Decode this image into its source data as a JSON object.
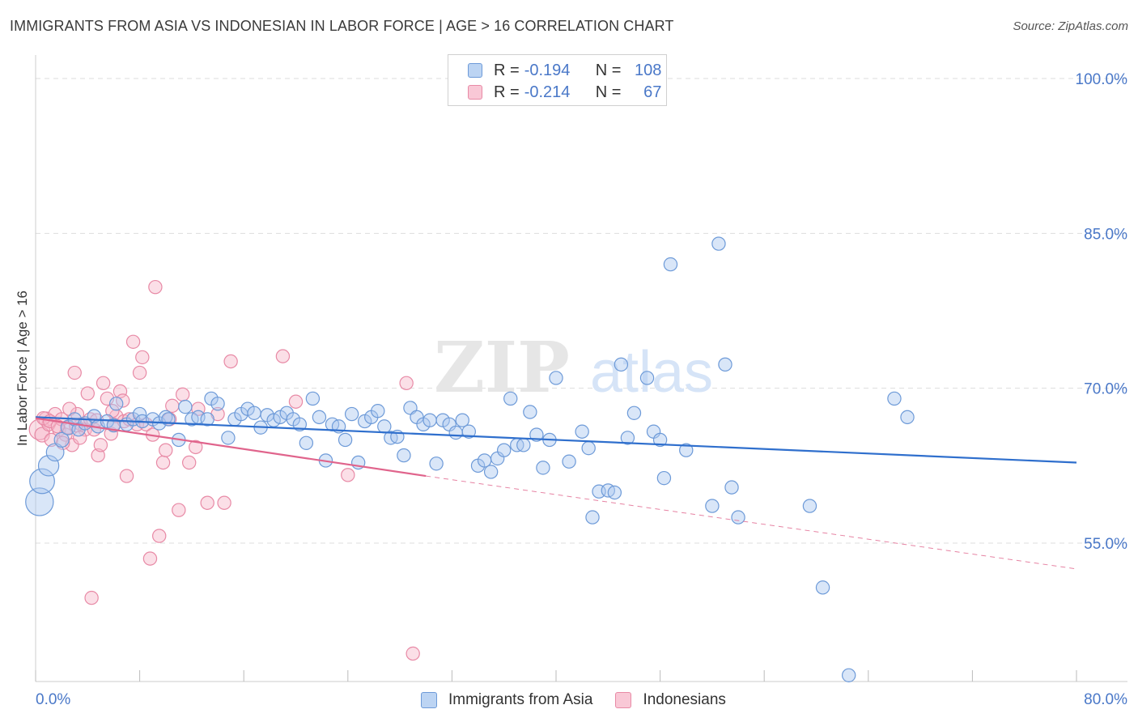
{
  "header": {
    "title": "IMMIGRANTS FROM ASIA VS INDONESIAN IN LABOR FORCE | AGE > 16 CORRELATION CHART",
    "source": "Source: ZipAtlas.com"
  },
  "watermark": {
    "zip": "ZIP",
    "atlas": "atlas"
  },
  "colors": {
    "blue_fill": "#aac8f0",
    "blue_stroke": "#6d9ad8",
    "blue_line": "#2f6fcd",
    "pink_fill": "#f6b8ca",
    "pink_stroke": "#e88aa6",
    "pink_line": "#e0648c",
    "axis_text": "#4a78c8",
    "grid": "#dddddd"
  },
  "legend": {
    "rows": [
      {
        "r_label": "R =",
        "r_value": "-0.194",
        "n_label": "N =",
        "n_value": "108"
      },
      {
        "r_label": "R =",
        "r_value": "-0.214",
        "n_label": "N =",
        "n_value": "67"
      }
    ],
    "series_names": [
      "Immigrants from Asia",
      "Indonesians"
    ]
  },
  "chart_data": {
    "type": "scatter",
    "title": "IMMIGRANTS FROM ASIA VS INDONESIAN IN LABOR FORCE | AGE > 16 CORRELATION CHART",
    "xlabel": "",
    "ylabel": "In Labor Force | Age > 16",
    "xlim": [
      0,
      80
    ],
    "ylim": [
      40,
      102
    ],
    "x_tick_labels": [
      "0.0%",
      "80.0%"
    ],
    "y_ticks": [
      55,
      70,
      85,
      100
    ],
    "y_tick_labels": [
      "55.0%",
      "70.0%",
      "85.0%",
      "100.0%"
    ],
    "grid": true,
    "legend_position": "bottom",
    "series": [
      {
        "name": "Immigrants from Asia",
        "trend": {
          "x": [
            0,
            80
          ],
          "y": [
            67.2,
            62.8
          ],
          "dashed_from": null
        },
        "points": [
          [
            0.3,
            59.0,
            1.9
          ],
          [
            0.5,
            61.0,
            1.7
          ],
          [
            1.0,
            62.5,
            1.4
          ],
          [
            1.5,
            63.8,
            1.2
          ],
          [
            2.0,
            65.0,
            1.0
          ],
          [
            2.5,
            66.2,
            1.0
          ],
          [
            3.0,
            67.0,
            0.9
          ],
          [
            3.3,
            66.0,
            0.9
          ],
          [
            3.8,
            66.6,
            0.9
          ],
          [
            4.5,
            67.3,
            0.9
          ],
          [
            4.8,
            66.3,
            0.9
          ],
          [
            5.5,
            66.8,
            0.9
          ],
          [
            6.0,
            66.4,
            0.9
          ],
          [
            6.2,
            68.5,
            0.9
          ],
          [
            7.0,
            66.5,
            0.9
          ],
          [
            7.5,
            67.0,
            0.9
          ],
          [
            8.0,
            67.5,
            0.9
          ],
          [
            8.2,
            66.8,
            0.9
          ],
          [
            9.0,
            67.0,
            0.9
          ],
          [
            9.5,
            66.6,
            0.9
          ],
          [
            10.0,
            67.2,
            0.9
          ],
          [
            10.2,
            67.0,
            0.9
          ],
          [
            11.0,
            65.0,
            0.9
          ],
          [
            11.5,
            68.2,
            0.9
          ],
          [
            12.0,
            67.0,
            0.9
          ],
          [
            12.5,
            67.2,
            0.9
          ],
          [
            13.2,
            67.0,
            0.9
          ],
          [
            13.5,
            69.0,
            0.9
          ],
          [
            14.0,
            68.5,
            0.9
          ],
          [
            14.8,
            65.2,
            0.9
          ],
          [
            15.3,
            67.0,
            0.9
          ],
          [
            15.8,
            67.5,
            0.9
          ],
          [
            16.3,
            68.0,
            0.9
          ],
          [
            16.8,
            67.6,
            0.9
          ],
          [
            17.3,
            66.2,
            0.9
          ],
          [
            17.8,
            67.4,
            0.9
          ],
          [
            18.3,
            66.9,
            0.9
          ],
          [
            18.8,
            67.2,
            0.9
          ],
          [
            19.3,
            67.6,
            0.9
          ],
          [
            19.8,
            67.0,
            0.9
          ],
          [
            20.3,
            66.5,
            0.9
          ],
          [
            20.8,
            64.7,
            0.9
          ],
          [
            21.3,
            69.0,
            0.9
          ],
          [
            21.8,
            67.2,
            0.9
          ],
          [
            22.3,
            63.0,
            0.9
          ],
          [
            22.8,
            66.5,
            0.9
          ],
          [
            23.3,
            66.3,
            0.9
          ],
          [
            23.8,
            65.0,
            0.9
          ],
          [
            24.3,
            67.5,
            0.9
          ],
          [
            24.8,
            62.8,
            0.9
          ],
          [
            25.3,
            66.8,
            0.9
          ],
          [
            25.8,
            67.2,
            0.9
          ],
          [
            26.3,
            67.8,
            0.9
          ],
          [
            26.8,
            66.3,
            0.9
          ],
          [
            27.3,
            65.2,
            0.9
          ],
          [
            27.8,
            65.3,
            0.9
          ],
          [
            28.3,
            63.5,
            0.9
          ],
          [
            28.8,
            68.1,
            0.9
          ],
          [
            29.3,
            67.2,
            0.9
          ],
          [
            29.8,
            66.5,
            0.9
          ],
          [
            30.3,
            66.9,
            0.9
          ],
          [
            30.8,
            62.7,
            0.9
          ],
          [
            31.3,
            66.9,
            0.9
          ],
          [
            31.8,
            66.5,
            0.9
          ],
          [
            32.3,
            65.7,
            0.9
          ],
          [
            32.8,
            66.9,
            0.9
          ],
          [
            33.3,
            65.8,
            0.9
          ],
          [
            34.0,
            62.5,
            0.9
          ],
          [
            34.5,
            63.0,
            0.9
          ],
          [
            35.0,
            61.9,
            0.9
          ],
          [
            35.5,
            63.2,
            0.9
          ],
          [
            36.0,
            64.0,
            0.9
          ],
          [
            36.5,
            69.0,
            0.9
          ],
          [
            37.0,
            64.5,
            0.9
          ],
          [
            37.5,
            64.5,
            0.9
          ],
          [
            38.0,
            67.7,
            0.9
          ],
          [
            38.5,
            65.5,
            0.9
          ],
          [
            39.0,
            62.3,
            0.9
          ],
          [
            39.5,
            65.0,
            0.9
          ],
          [
            40.0,
            71.0,
            0.9
          ],
          [
            41.0,
            62.9,
            0.9
          ],
          [
            42.0,
            65.8,
            0.9
          ],
          [
            42.5,
            64.2,
            0.9
          ],
          [
            42.8,
            57.5,
            0.9
          ],
          [
            43.3,
            60.0,
            0.9
          ],
          [
            44.0,
            60.1,
            0.9
          ],
          [
            44.5,
            59.9,
            0.9
          ],
          [
            45.0,
            72.3,
            0.9
          ],
          [
            45.5,
            65.2,
            0.9
          ],
          [
            46.0,
            67.6,
            0.9
          ],
          [
            47.0,
            71.0,
            0.9
          ],
          [
            47.5,
            65.8,
            0.9
          ],
          [
            48.0,
            65.0,
            0.9
          ],
          [
            48.3,
            61.3,
            0.9
          ],
          [
            48.8,
            82.0,
            0.9
          ],
          [
            50.0,
            64.0,
            0.9
          ],
          [
            52.0,
            58.6,
            0.9
          ],
          [
            52.5,
            84.0,
            0.9
          ],
          [
            53.0,
            72.3,
            0.9
          ],
          [
            53.5,
            60.4,
            0.9
          ],
          [
            54.0,
            57.5,
            0.9
          ],
          [
            59.5,
            58.6,
            0.9
          ],
          [
            60.5,
            50.7,
            0.9
          ],
          [
            62.5,
            42.2,
            0.9
          ],
          [
            66.0,
            69.0,
            0.9
          ],
          [
            67.0,
            67.2,
            0.9
          ]
        ]
      },
      {
        "name": "Indonesians",
        "trend": {
          "x": [
            0,
            30
          ],
          "y": [
            67.1,
            61.5
          ],
          "dashed_to": [
            80,
            52.5
          ]
        },
        "points": [
          [
            0.3,
            66.0,
            1.4
          ],
          [
            0.5,
            65.5,
            1.0
          ],
          [
            0.8,
            67.0,
            1.0
          ],
          [
            1.0,
            66.5,
            0.9
          ],
          [
            1.2,
            65.0,
            0.9
          ],
          [
            1.5,
            67.5,
            0.9
          ],
          [
            1.8,
            66.0,
            0.9
          ],
          [
            2.0,
            67.0,
            0.9
          ],
          [
            2.3,
            65.5,
            0.9
          ],
          [
            2.5,
            66.2,
            0.9
          ],
          [
            2.8,
            64.5,
            0.9
          ],
          [
            3.0,
            71.5,
            0.9
          ],
          [
            3.2,
            67.5,
            0.9
          ],
          [
            3.5,
            66.5,
            0.9
          ],
          [
            3.8,
            66.0,
            0.9
          ],
          [
            4.0,
            69.5,
            0.9
          ],
          [
            4.2,
            67.0,
            0.9
          ],
          [
            4.5,
            66.0,
            0.9
          ],
          [
            4.8,
            63.5,
            0.9
          ],
          [
            5.0,
            64.5,
            0.9
          ],
          [
            5.2,
            70.5,
            0.9
          ],
          [
            5.5,
            69.0,
            0.9
          ],
          [
            5.8,
            65.6,
            0.9
          ],
          [
            6.0,
            66.5,
            0.9
          ],
          [
            6.2,
            67.3,
            0.9
          ],
          [
            6.5,
            69.7,
            0.9
          ],
          [
            6.8,
            66.8,
            0.9
          ],
          [
            7.0,
            61.5,
            0.9
          ],
          [
            7.2,
            67.0,
            0.9
          ],
          [
            7.5,
            74.5,
            0.9
          ],
          [
            7.8,
            66.5,
            0.9
          ],
          [
            8.0,
            71.5,
            0.9
          ],
          [
            8.2,
            73.0,
            0.9
          ],
          [
            8.5,
            66.5,
            0.9
          ],
          [
            8.8,
            53.5,
            0.9
          ],
          [
            9.0,
            65.5,
            0.9
          ],
          [
            9.2,
            79.8,
            0.9
          ],
          [
            9.5,
            55.7,
            0.9
          ],
          [
            9.8,
            62.8,
            0.9
          ],
          [
            10.0,
            64.0,
            0.9
          ],
          [
            10.3,
            67.0,
            0.9
          ],
          [
            10.5,
            68.3,
            0.9
          ],
          [
            11.0,
            58.2,
            0.9
          ],
          [
            11.3,
            69.4,
            0.9
          ],
          [
            11.8,
            62.8,
            0.9
          ],
          [
            12.3,
            64.3,
            0.9
          ],
          [
            12.5,
            68.0,
            0.9
          ],
          [
            13.2,
            58.9,
            0.9
          ],
          [
            14.0,
            67.5,
            0.9
          ],
          [
            14.5,
            58.9,
            0.9
          ],
          [
            15.0,
            72.6,
            0.9
          ],
          [
            19.0,
            73.1,
            0.9
          ],
          [
            20.0,
            68.7,
            0.9
          ],
          [
            24.0,
            61.6,
            0.9
          ],
          [
            28.5,
            70.5,
            0.9
          ],
          [
            29.0,
            44.3,
            0.9
          ],
          [
            0.6,
            67.1,
            0.9
          ],
          [
            1.1,
            66.8,
            0.9
          ],
          [
            1.7,
            66.3,
            0.9
          ],
          [
            2.1,
            64.7,
            0.9
          ],
          [
            3.4,
            65.2,
            0.9
          ],
          [
            4.7,
            66.9,
            0.9
          ],
          [
            5.9,
            67.8,
            0.9
          ],
          [
            6.7,
            68.8,
            0.9
          ],
          [
            4.3,
            49.7,
            0.9
          ],
          [
            3.1,
            66.4,
            0.9
          ],
          [
            2.6,
            68.0,
            0.9
          ]
        ]
      }
    ]
  }
}
